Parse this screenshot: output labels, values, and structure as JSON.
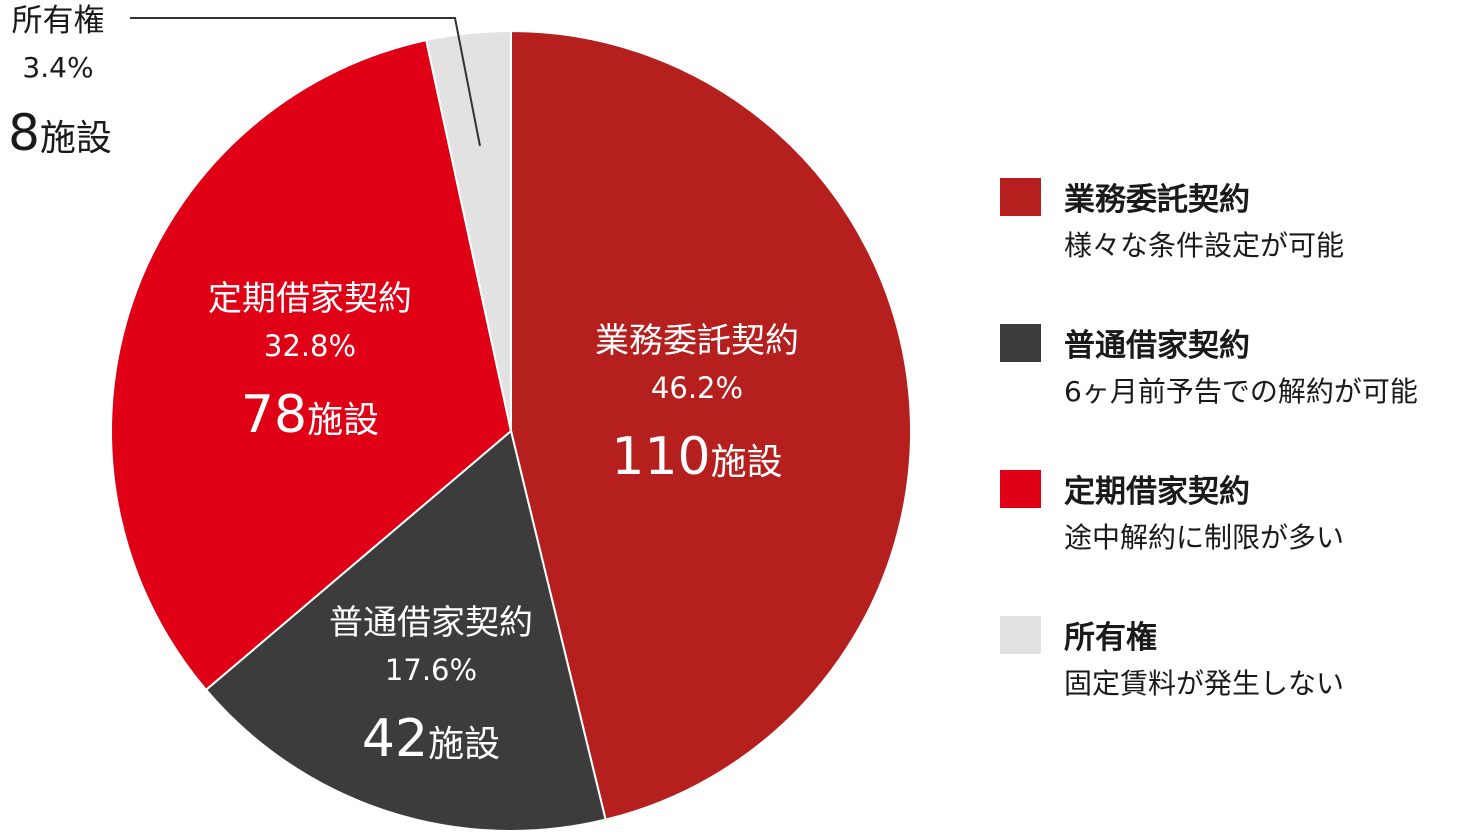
{
  "chart_data": {
    "type": "pie",
    "title": "",
    "slices": [
      {
        "name": "業務委託契約",
        "percent_label": "46.2",
        "percent": 46.2,
        "count": "110",
        "unit": "施設",
        "color": "#b5201e",
        "description": "様々な条件設定が可能"
      },
      {
        "name": "普通借家契約",
        "percent_label": "17.6",
        "percent": 17.6,
        "count": "42",
        "unit": "施設",
        "color": "#3c3c3c",
        "description": "6ヶ月前予告での解約が可能"
      },
      {
        "name": "定期借家契約",
        "percent_label": "32.8",
        "percent": 32.8,
        "count": "78",
        "unit": "施設",
        "color": "#e00015",
        "description": "途中解約に制限が多い"
      },
      {
        "name": "所有権",
        "percent_label": "3.4",
        "percent": 3.4,
        "count": "8",
        "unit": "施設",
        "color": "#e2e2e2",
        "description": "固定賃料が発生しない"
      }
    ],
    "percent_sign": "%",
    "start_angle": "12 o'clock",
    "direction": "clockwise",
    "legend_position": "right"
  }
}
